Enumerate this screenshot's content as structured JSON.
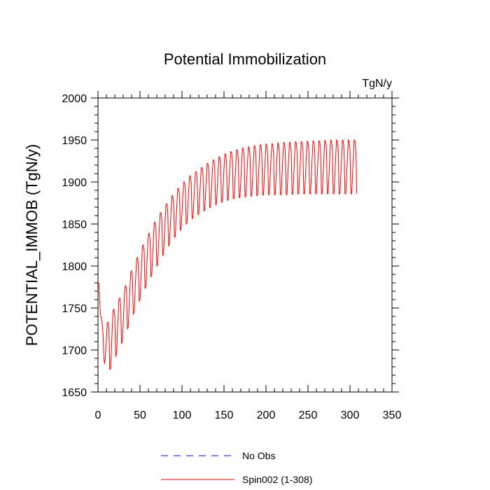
{
  "chart_data": {
    "type": "line",
    "title": "Potential Immobilization",
    "units_label": "TgN/y",
    "xlabel": "",
    "ylabel": "POTENTIAL_IMMOB  (TgN/y)",
    "xlim": [
      0,
      350
    ],
    "ylim": [
      1650,
      2000
    ],
    "x_ticks": [
      "0",
      "50",
      "100",
      "150",
      "200",
      "250",
      "300",
      "350"
    ],
    "y_ticks": [
      "1650",
      "1700",
      "1750",
      "1800",
      "1850",
      "1900",
      "1950",
      "2000"
    ],
    "legend_position": "bottom",
    "series": [
      {
        "name": "No Obs",
        "color": "#0000ff",
        "style": "dashed",
        "x": [],
        "values": []
      },
      {
        "name": "Spin002 (1-308)",
        "color": "#ff0000",
        "style": "solid",
        "x_range": [
          1,
          308
        ],
        "annual_cycle_amplitude_note": "seasonal sawtooth per year",
        "envelope_years": [
          1,
          3,
          6,
          10,
          15,
          20,
          30,
          40,
          50,
          60,
          70,
          80,
          90,
          100,
          110,
          120,
          130,
          140,
          150,
          160,
          170,
          180,
          190,
          200,
          210,
          220,
          240,
          260,
          280,
          300,
          308
        ],
        "envelope_min": [
          1780,
          1735,
          1695,
          1672,
          1678,
          1690,
          1712,
          1738,
          1760,
          1782,
          1800,
          1818,
          1833,
          1845,
          1855,
          1862,
          1868,
          1873,
          1877,
          1880,
          1882,
          1883,
          1884,
          1885,
          1885,
          1885,
          1886,
          1886,
          1886,
          1886,
          1886
        ],
        "envelope_max": [
          1780,
          1745,
          1725,
          1730,
          1740,
          1752,
          1770,
          1795,
          1818,
          1838,
          1857,
          1872,
          1886,
          1898,
          1908,
          1915,
          1922,
          1928,
          1933,
          1937,
          1940,
          1942,
          1944,
          1945,
          1946,
          1947,
          1948,
          1949,
          1950,
          1950,
          1950
        ]
      }
    ]
  },
  "legend": [
    {
      "label": "No Obs",
      "color": "#0000ff",
      "style": "dashed"
    },
    {
      "label": "Spin002 (1-308)",
      "color": "#ff0000",
      "style": "solid"
    }
  ]
}
